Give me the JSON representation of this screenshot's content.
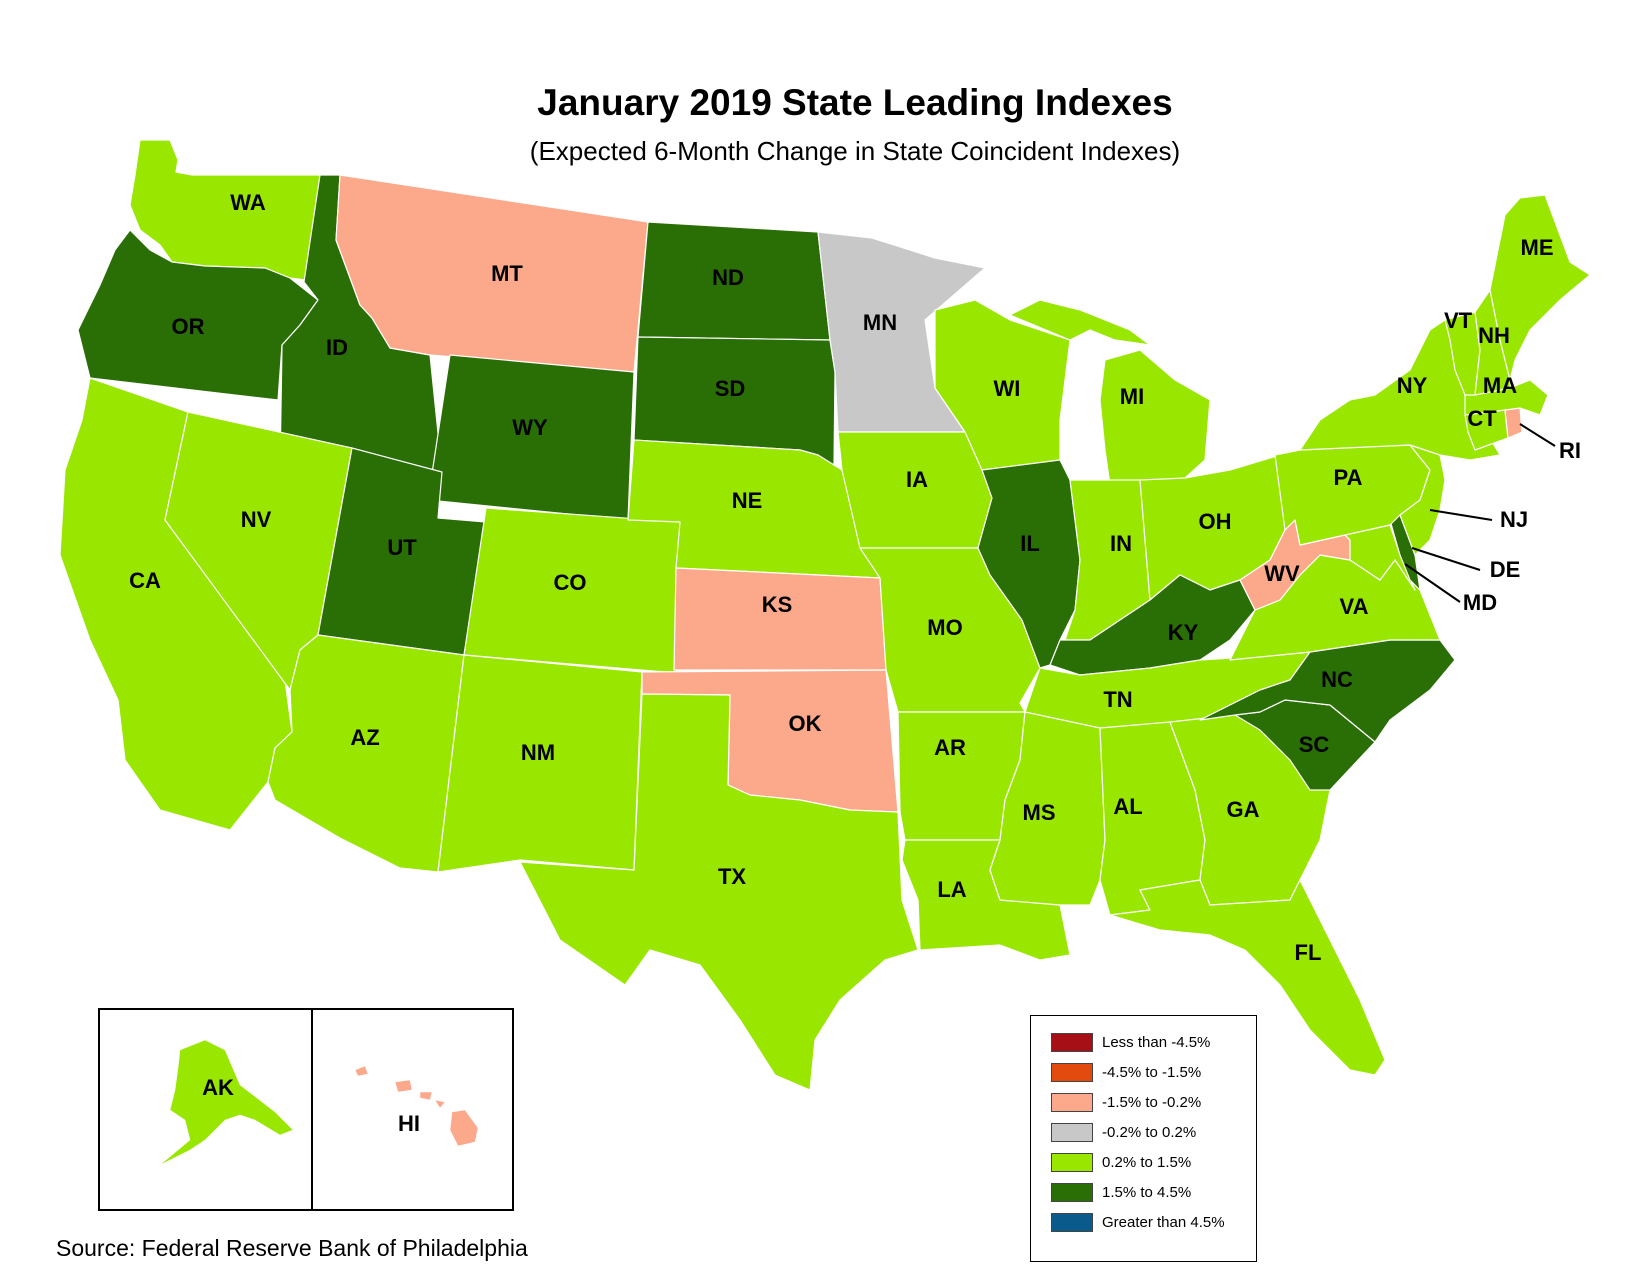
{
  "title": "January 2019 State Leading Indexes",
  "subtitle": "(Expected 6-Month Change in State Coincident Indexes)",
  "source": "Source: Federal Reserve Bank of Philadelphia",
  "colors": {
    "lt_-4.5": "#a50f15",
    "-4.5_-1.5": "#e34a0e",
    "-1.5_-0.2": "#fca88a",
    "-0.2_0.2": "#c8c8c8",
    "0.2_1.5": "#99e600",
    "1.5_4.5": "#2a6e06",
    "gt_4.5": "#0b5a8c"
  },
  "legend": [
    {
      "label": "Less than -4.5%",
      "color": "#a50f15"
    },
    {
      "label": "-4.5% to -1.5%",
      "color": "#e34a0e"
    },
    {
      "label": "-1.5% to -0.2%",
      "color": "#fca88a"
    },
    {
      "label": "-0.2% to 0.2%",
      "color": "#c8c8c8"
    },
    {
      "label": "0.2% to 1.5%",
      "color": "#99e600"
    },
    {
      "label": "1.5% to 4.5%",
      "color": "#2a6e06"
    },
    {
      "label": "Greater than 4.5%",
      "color": "#0b5a8c"
    }
  ],
  "states": {
    "WA": "0.2% to 1.5%",
    "OR": "1.5% to 4.5%",
    "CA": "0.2% to 1.5%",
    "ID": "1.5% to 4.5%",
    "NV": "0.2% to 1.5%",
    "MT": "-1.5% to -0.2%",
    "WY": "1.5% to 4.5%",
    "UT": "1.5% to 4.5%",
    "AZ": "0.2% to 1.5%",
    "CO": "0.2% to 1.5%",
    "NM": "0.2% to 1.5%",
    "ND": "1.5% to 4.5%",
    "SD": "1.5% to 4.5%",
    "NE": "0.2% to 1.5%",
    "KS": "-1.5% to -0.2%",
    "OK": "-1.5% to -0.2%",
    "TX": "0.2% to 1.5%",
    "MN": "-0.2% to 0.2%",
    "IA": "0.2% to 1.5%",
    "MO": "0.2% to 1.5%",
    "AR": "0.2% to 1.5%",
    "LA": "0.2% to 1.5%",
    "WI": "0.2% to 1.5%",
    "IL": "1.5% to 4.5%",
    "MI": "0.2% to 1.5%",
    "IN": "0.2% to 1.5%",
    "OH": "0.2% to 1.5%",
    "KY": "1.5% to 4.5%",
    "TN": "0.2% to 1.5%",
    "MS": "0.2% to 1.5%",
    "AL": "0.2% to 1.5%",
    "GA": "0.2% to 1.5%",
    "FL": "0.2% to 1.5%",
    "SC": "1.5% to 4.5%",
    "NC": "1.5% to 4.5%",
    "VA": "0.2% to 1.5%",
    "WV": "-1.5% to -0.2%",
    "MD": "0.2% to 1.5%",
    "DE": "1.5% to 4.5%",
    "NJ": "0.2% to 1.5%",
    "PA": "0.2% to 1.5%",
    "NY": "0.2% to 1.5%",
    "CT": "0.2% to 1.5%",
    "RI": "-1.5% to -0.2%",
    "MA": "0.2% to 1.5%",
    "VT": "0.2% to 1.5%",
    "NH": "0.2% to 1.5%",
    "ME": "0.2% to 1.5%",
    "AK": "0.2% to 1.5%",
    "HI": "-1.5% to -0.2%"
  },
  "labels": {
    "WA": "WA",
    "OR": "OR",
    "CA": "CA",
    "ID": "ID",
    "NV": "NV",
    "MT": "MT",
    "WY": "WY",
    "UT": "UT",
    "AZ": "AZ",
    "CO": "CO",
    "NM": "NM",
    "ND": "ND",
    "SD": "SD",
    "NE": "NE",
    "KS": "KS",
    "OK": "OK",
    "TX": "TX",
    "MN": "MN",
    "IA": "IA",
    "MO": "MO",
    "AR": "AR",
    "LA": "LA",
    "WI": "WI",
    "IL": "IL",
    "MI": "MI",
    "IN": "IN",
    "OH": "OH",
    "KY": "KY",
    "TN": "TN",
    "MS": "MS",
    "AL": "AL",
    "GA": "GA",
    "FL": "FL",
    "SC": "SC",
    "NC": "NC",
    "VA": "VA",
    "WV": "WV",
    "MD": "MD",
    "DE": "DE",
    "NJ": "NJ",
    "PA": "PA",
    "NY": "NY",
    "CT": "CT",
    "RI": "RI",
    "MA": "MA",
    "VT": "VT",
    "NH": "NH",
    "ME": "ME",
    "AK": "AK",
    "HI": "HI"
  }
}
